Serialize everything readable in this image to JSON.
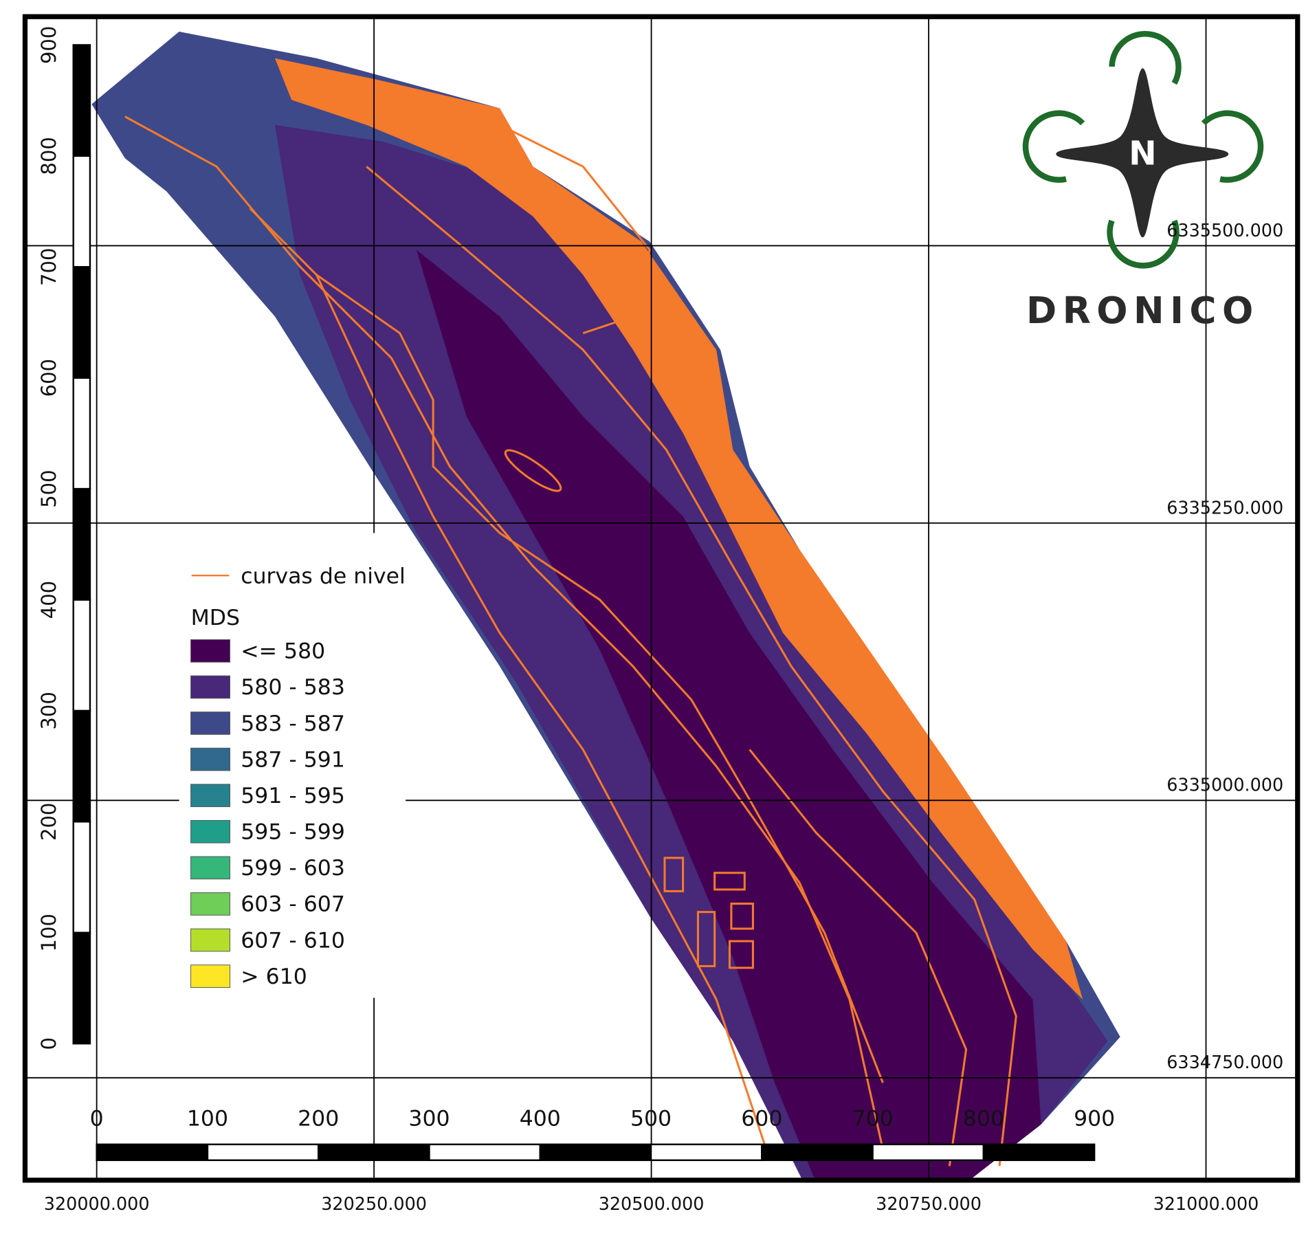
{
  "legend": {
    "line_label": "curvas de nivel",
    "title": "MDS",
    "classes": [
      {
        "label": "<= 580",
        "color": "#440154"
      },
      {
        "label": "580 - 583",
        "color": "#482878"
      },
      {
        "label": "583 - 587",
        "color": "#3e4989"
      },
      {
        "label": "587 - 591",
        "color": "#31688e"
      },
      {
        "label": "591 - 595",
        "color": "#26828e"
      },
      {
        "label": "595 - 599",
        "color": "#1f9e89"
      },
      {
        "label": "599 - 603",
        "color": "#35b779"
      },
      {
        "label": "603 - 607",
        "color": "#6ece58"
      },
      {
        "label": "607 - 610",
        "color": "#b5de2b"
      },
      {
        "label": "> 610",
        "color": "#fde725"
      }
    ]
  },
  "scale_vertical": [
    0,
    100,
    200,
    300,
    400,
    500,
    600,
    700,
    800,
    900
  ],
  "scale_horizontal": [
    0,
    100,
    200,
    300,
    400,
    500,
    600,
    700,
    800,
    900
  ],
  "grid_x_labels": [
    "320000.000",
    "320250.000",
    "320500.000",
    "320750.000",
    "321000.000"
  ],
  "grid_y_labels": [
    "6335500.000",
    "6335250.000",
    "6335000.000",
    "6334750.000"
  ],
  "logo": {
    "letter": "N",
    "name": "DRONICO"
  }
}
